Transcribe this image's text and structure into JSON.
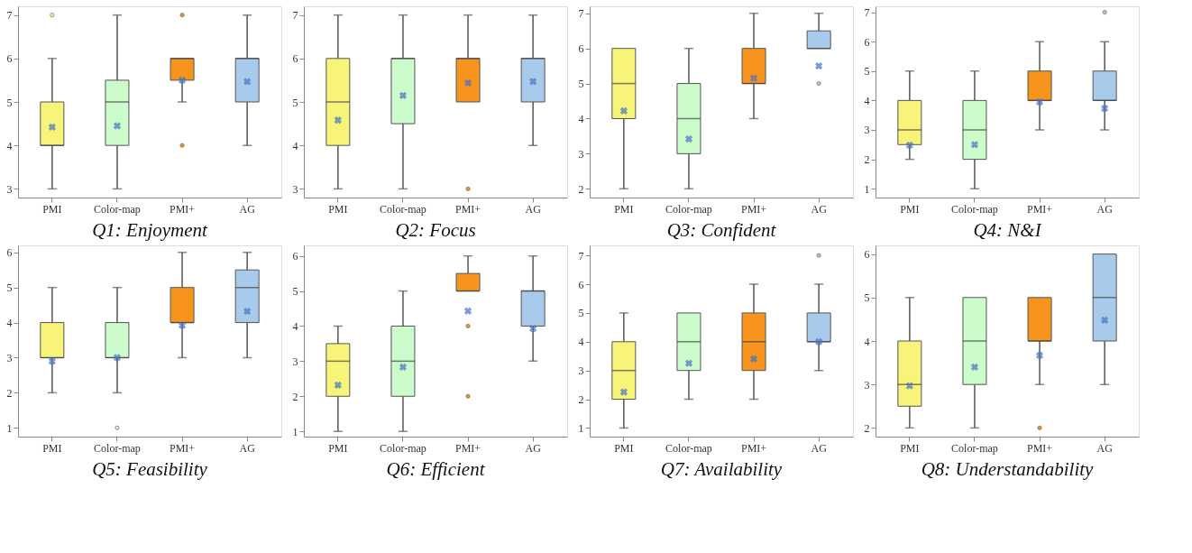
{
  "chart_data": [
    {
      "type": "box",
      "title": "Q1: Enjoyment",
      "categories": [
        "PMI",
        "Color-map",
        "PMI+",
        "AG"
      ],
      "colors": [
        "#f8f47a",
        "#ccfccc",
        "#f7941d",
        "#a8cbec"
      ],
      "ylim": [
        2.8,
        7.2
      ],
      "yticks": [
        3,
        4,
        5,
        6,
        7
      ],
      "grid": false,
      "marker": "cross",
      "legend": false,
      "boxes": [
        {
          "low": 3,
          "q1": 4,
          "median": 4,
          "q3": 5,
          "high": 6,
          "mean": 4.42,
          "outliers": [
            7
          ]
        },
        {
          "low": 3,
          "q1": 4,
          "median": 5,
          "q3": 5.5,
          "high": 7,
          "mean": 4.45
        },
        {
          "low": 5,
          "q1": 5.5,
          "median": 6,
          "q3": 6,
          "high": 6,
          "mean": 5.5,
          "outliers": [
            7,
            4
          ]
        },
        {
          "low": 4,
          "q1": 5,
          "median": 6,
          "q3": 6,
          "high": 7,
          "mean": 5.47
        }
      ]
    },
    {
      "type": "box",
      "title": "Q2: Focus",
      "categories": [
        "PMI",
        "Color-map",
        "PMI+",
        "AG"
      ],
      "colors": [
        "#f8f47a",
        "#ccfccc",
        "#f7941d",
        "#a8cbec"
      ],
      "ylim": [
        2.8,
        7.2
      ],
      "yticks": [
        3,
        4,
        5,
        6,
        7
      ],
      "grid": false,
      "marker": "cross",
      "legend": false,
      "boxes": [
        {
          "low": 3,
          "q1": 4,
          "median": 5,
          "q3": 6,
          "high": 7,
          "mean": 4.58
        },
        {
          "low": 3,
          "q1": 4.5,
          "median": 6,
          "q3": 6,
          "high": 7,
          "mean": 5.15
        },
        {
          "low": 5,
          "q1": 5,
          "median": 6,
          "q3": 6,
          "high": 7,
          "mean": 5.44,
          "outliers": [
            3
          ]
        },
        {
          "low": 4,
          "q1": 5,
          "median": 6,
          "q3": 6,
          "high": 7,
          "mean": 5.47
        }
      ]
    },
    {
      "type": "box",
      "title": "Q3: Confident",
      "categories": [
        "PMI",
        "Color-map",
        "PMI+",
        "AG"
      ],
      "colors": [
        "#f8f47a",
        "#ccfccc",
        "#f7941d",
        "#a8cbec"
      ],
      "ylim": [
        1.75,
        7.2
      ],
      "yticks": [
        2,
        3,
        4,
        5,
        6,
        7
      ],
      "grid": false,
      "marker": "cross",
      "legend": false,
      "boxes": [
        {
          "low": 2,
          "q1": 4,
          "median": 5,
          "q3": 6,
          "high": 6,
          "mean": 4.22
        },
        {
          "low": 2,
          "q1": 3,
          "median": 4,
          "q3": 5,
          "high": 6,
          "mean": 3.42
        },
        {
          "low": 4,
          "q1": 5,
          "median": 5,
          "q3": 6,
          "high": 7,
          "mean": 5.15
        },
        {
          "low": 6,
          "q1": 6,
          "median": 6,
          "q3": 6.5,
          "high": 7,
          "mean": 5.5,
          "outliers": [
            5
          ]
        }
      ]
    },
    {
      "type": "box",
      "title": "Q4: N&I",
      "categories": [
        "PMI",
        "Color-map",
        "PMI+",
        "AG"
      ],
      "colors": [
        "#f8f47a",
        "#ccfccc",
        "#f7941d",
        "#a8cbec"
      ],
      "ylim": [
        0.7,
        7.2
      ],
      "yticks": [
        1,
        2,
        3,
        4,
        5,
        6,
        7
      ],
      "grid": false,
      "marker": "cross",
      "legend": false,
      "boxes": [
        {
          "low": 2,
          "q1": 2.5,
          "median": 3,
          "q3": 4,
          "high": 5,
          "mean": 2.48
        },
        {
          "low": 1,
          "q1": 2,
          "median": 3,
          "q3": 4,
          "high": 5,
          "mean": 2.5
        },
        {
          "low": 3,
          "q1": 4,
          "median": 4,
          "q3": 5,
          "high": 6,
          "mean": 3.95
        },
        {
          "low": 3,
          "q1": 4,
          "median": 4,
          "q3": 5,
          "high": 6,
          "mean": 3.73,
          "outliers": [
            7
          ]
        }
      ]
    },
    {
      "type": "box",
      "title": "Q5: Feasibility",
      "categories": [
        "PMI",
        "Color-map",
        "PMI+",
        "AG"
      ],
      "colors": [
        "#f8f47a",
        "#ccfccc",
        "#f7941d",
        "#a8cbec"
      ],
      "ylim": [
        0.75,
        6.2
      ],
      "yticks": [
        1,
        2,
        3,
        4,
        5,
        6
      ],
      "grid": false,
      "marker": "cross",
      "legend": false,
      "boxes": [
        {
          "low": 2,
          "q1": 3,
          "median": 3,
          "q3": 4,
          "high": 5,
          "mean": 2.9
        },
        {
          "low": 2,
          "q1": 3,
          "median": 3,
          "q3": 4,
          "high": 5,
          "mean": 3.0,
          "outliers": [
            1
          ]
        },
        {
          "low": 3,
          "q1": 4,
          "median": 4,
          "q3": 5,
          "high": 6,
          "mean": 3.92
        },
        {
          "low": 3,
          "q1": 4,
          "median": 5,
          "q3": 5.5,
          "high": 6,
          "mean": 4.32
        }
      ]
    },
    {
      "type": "box",
      "title": "Q6: Efficient",
      "categories": [
        "PMI",
        "Color-map",
        "PMI+",
        "AG"
      ],
      "colors": [
        "#f8f47a",
        "#ccfccc",
        "#f7941d",
        "#a8cbec"
      ],
      "ylim": [
        0.85,
        6.3
      ],
      "yticks": [
        1,
        2,
        3,
        4,
        5,
        6
      ],
      "grid": false,
      "marker": "cross",
      "legend": false,
      "boxes": [
        {
          "low": 1,
          "q1": 2,
          "median": 3,
          "q3": 3.5,
          "high": 4,
          "mean": 2.32
        },
        {
          "low": 1,
          "q1": 2,
          "median": 3,
          "q3": 4,
          "high": 5,
          "mean": 2.83
        },
        {
          "low": 5,
          "q1": 5,
          "median": 5,
          "q3": 5.5,
          "high": 6,
          "mean": 4.43,
          "outliers": [
            4,
            2
          ]
        },
        {
          "low": 3,
          "q1": 4,
          "median": 5,
          "q3": 5,
          "high": 6,
          "mean": 3.93
        }
      ]
    },
    {
      "type": "box",
      "title": "Q7: Availability",
      "categories": [
        "PMI",
        "Color-map",
        "PMI+",
        "AG"
      ],
      "colors": [
        "#f8f47a",
        "#ccfccc",
        "#f7941d",
        "#a8cbec"
      ],
      "ylim": [
        0.7,
        7.35
      ],
      "yticks": [
        1,
        2,
        3,
        4,
        5,
        6,
        7
      ],
      "grid": false,
      "marker": "cross",
      "legend": false,
      "boxes": [
        {
          "low": 1,
          "q1": 2,
          "median": 3,
          "q3": 4,
          "high": 5,
          "mean": 2.25
        },
        {
          "low": 2,
          "q1": 3,
          "median": 4,
          "q3": 5,
          "high": 5,
          "mean": 3.25
        },
        {
          "low": 2,
          "q1": 3,
          "median": 4,
          "q3": 5,
          "high": 6,
          "mean": 3.4
        },
        {
          "low": 3,
          "q1": 4,
          "median": 4,
          "q3": 5,
          "high": 6,
          "mean": 4.0,
          "outliers": [
            7
          ]
        }
      ]
    },
    {
      "type": "box",
      "title": "Q8: Understandability",
      "categories": [
        "PMI",
        "Color-map",
        "PMI+",
        "AG"
      ],
      "colors": [
        "#f8f47a",
        "#ccfccc",
        "#f7941d",
        "#a8cbec"
      ],
      "ylim": [
        1.8,
        6.2
      ],
      "yticks": [
        2,
        3,
        4,
        5,
        6
      ],
      "grid": false,
      "marker": "cross",
      "legend": false,
      "boxes": [
        {
          "low": 2,
          "q1": 2.5,
          "median": 3,
          "q3": 4,
          "high": 5,
          "mean": 2.97
        },
        {
          "low": 2,
          "q1": 3,
          "median": 4,
          "q3": 5,
          "high": 5,
          "mean": 3.4
        },
        {
          "low": 3,
          "q1": 4,
          "median": 4,
          "q3": 5,
          "high": 5,
          "mean": 3.67,
          "outliers": [
            2
          ]
        },
        {
          "low": 3,
          "q1": 4,
          "median": 5,
          "q3": 6,
          "high": 6,
          "mean": 4.48
        }
      ]
    }
  ]
}
